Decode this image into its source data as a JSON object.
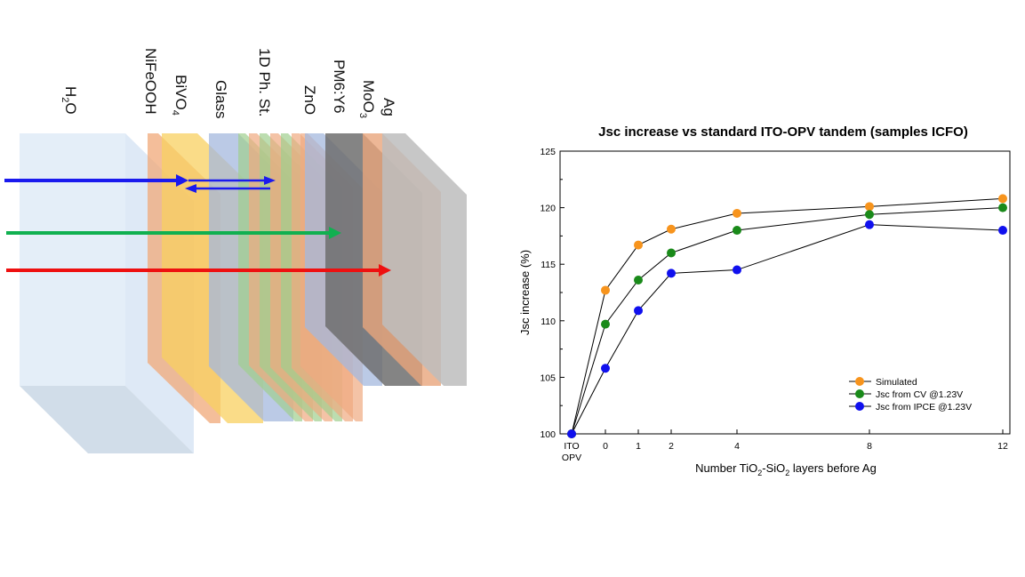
{
  "stack": {
    "layer_labels": {
      "h2o": "H",
      "h2o_sub": "2",
      "h2o_tail": "O",
      "nifeooh": "NiFeOOH",
      "bivo": "BiVO",
      "bivo_sub": "4",
      "glass": "Glass",
      "phst": "1D Ph. St.",
      "zno": "ZnO",
      "pm6": "PM6:Y6",
      "moo": "MoO",
      "moo_sub": "3",
      "ag": "Ag"
    },
    "colors": {
      "water": "#dce8f5",
      "nifeooh": "#f0a878",
      "bivo": "#f8d060",
      "glass": "#a4b8de",
      "photonic_green": "#9fcf8e",
      "photonic_orange": "#f0aa80",
      "zno": "#a4b8de",
      "pm6": "#707070",
      "moo": "#e9a57c",
      "ag": "#bdbdbd",
      "blue_ray": "#1a1aee",
      "green_ray": "#10b050",
      "red_ray": "#ee1010"
    }
  },
  "chart_data": {
    "type": "line",
    "title": "Jsc increase vs standard ITO-OPV tandem (samples ICFO)",
    "xlabel": "Number TiO2-SiO2 layers before Ag",
    "xlabel_parts": {
      "pre": "Number TiO",
      "sub1": "2",
      "mid": "-SiO",
      "sub2": "2",
      "post": " layers before Ag"
    },
    "ylabel": "Jsc increase (%)",
    "categories": [
      "ITO OPV",
      "0",
      "1",
      "2",
      "4",
      "8",
      "12"
    ],
    "category_lines": [
      [
        "ITO",
        "OPV"
      ],
      [
        "0"
      ],
      [
        "1"
      ],
      [
        "2"
      ],
      [
        "4"
      ],
      [
        "8"
      ],
      [
        "12"
      ]
    ],
    "ylim": [
      100,
      125
    ],
    "yticks": [
      "100",
      "105",
      "110",
      "115",
      "120",
      "125"
    ],
    "legend_position": "bottom-right",
    "series": [
      {
        "name": "Simulated",
        "color": "#f7941d",
        "values": [
          100,
          112.7,
          116.7,
          118.1,
          119.5,
          120.1,
          120.8
        ]
      },
      {
        "name": "Jsc from CV @1.23V",
        "color": "#1a8a1a",
        "values": [
          100,
          109.7,
          113.6,
          116.0,
          118.0,
          119.4,
          120.0
        ]
      },
      {
        "name": "Jsc from IPCE @1.23V",
        "color": "#1010ee",
        "values": [
          100,
          105.8,
          110.9,
          114.2,
          114.5,
          118.5,
          118.0
        ]
      }
    ]
  }
}
